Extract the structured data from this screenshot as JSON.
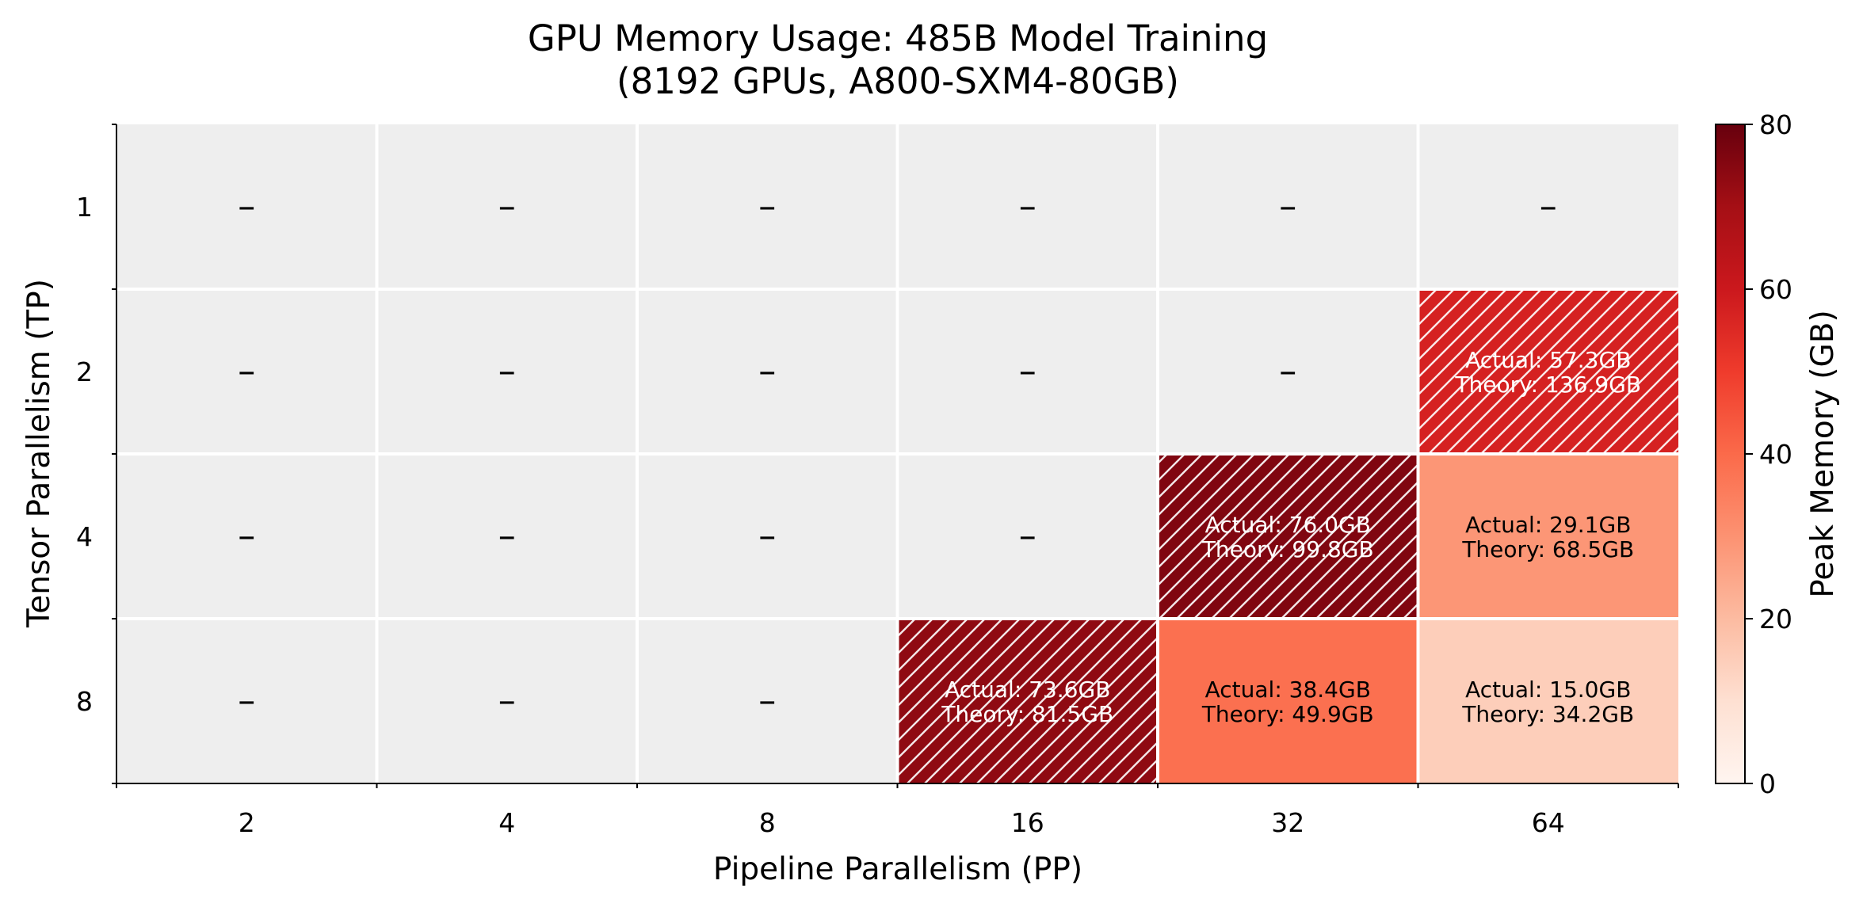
{
  "chart_data": {
    "type": "heatmap",
    "title": "GPU Memory Usage: 485B Model Training",
    "subtitle": "(8192 GPUs, A800-SXM4-80GB)",
    "xlabel": "Pipeline Parallelism (PP)",
    "ylabel": "Tensor Parallelism (TP)",
    "x_categories": [
      "2",
      "4",
      "8",
      "16",
      "32",
      "64"
    ],
    "y_categories": [
      "1",
      "2",
      "4",
      "8"
    ],
    "colorbar": {
      "label": "Peak Memory (GB)",
      "range": [
        0,
        80
      ],
      "ticks": [
        "0",
        "20",
        "40",
        "60",
        "80"
      ],
      "colormap": "Reds"
    },
    "missing_marker": "–",
    "missing_color": "#eeeeee",
    "hatch_rule": "theory exceeds 80GB",
    "cells": [
      {
        "pp": "64",
        "tp": "2",
        "actual": 57.3,
        "theory": 136.9,
        "actual_label": "Actual: 57.3GB",
        "theory_label": "Theory: 136.9GB",
        "hatched": true
      },
      {
        "pp": "32",
        "tp": "4",
        "actual": 76.0,
        "theory": 99.8,
        "actual_label": "Actual: 76.0GB",
        "theory_label": "Theory: 99.8GB",
        "hatched": true
      },
      {
        "pp": "64",
        "tp": "4",
        "actual": 29.1,
        "theory": 68.5,
        "actual_label": "Actual: 29.1GB",
        "theory_label": "Theory: 68.5GB",
        "hatched": false
      },
      {
        "pp": "16",
        "tp": "8",
        "actual": 73.6,
        "theory": 81.5,
        "actual_label": "Actual: 73.6GB",
        "theory_label": "Theory: 81.5GB",
        "hatched": true
      },
      {
        "pp": "32",
        "tp": "8",
        "actual": 38.4,
        "theory": 49.9,
        "actual_label": "Actual: 38.4GB",
        "theory_label": "Theory: 49.9GB",
        "hatched": false
      },
      {
        "pp": "64",
        "tp": "8",
        "actual": 15.0,
        "theory": 34.2,
        "actual_label": "Actual: 15.0GB",
        "theory_label": "Theory: 34.2GB",
        "hatched": false
      }
    ]
  }
}
